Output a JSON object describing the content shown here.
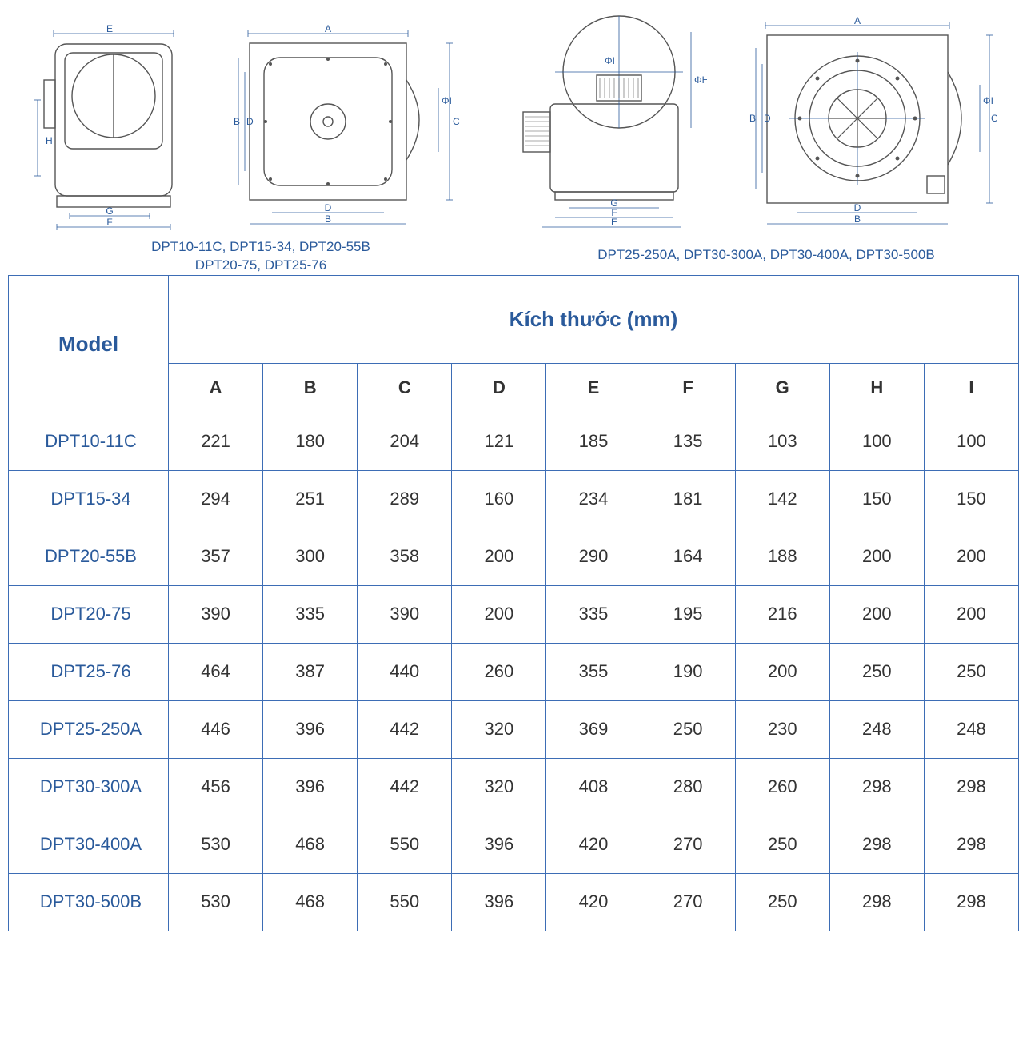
{
  "colors": {
    "line_blue": "#2a5a9b",
    "border_blue": "#3d6db5",
    "gray": "#555555",
    "background": "#ffffff",
    "text": "#333333"
  },
  "typography": {
    "font_family": "Arial",
    "caption_fontsize": 17,
    "header_fontsize": 26,
    "cell_fontsize": 22,
    "dim_label_fontsize": 12
  },
  "diagrams": {
    "left_caption_line1": "DPT10-11C, DPT15-34, DPT20-55B",
    "left_caption_line2": "DPT20-75, DPT25-76",
    "right_caption": "DPT25-250A, DPT30-300A, DPT30-400A, DPT30-500B",
    "dim_labels": [
      "A",
      "B",
      "C",
      "D",
      "E",
      "F",
      "G",
      "H",
      "ΦI",
      "ΦH"
    ]
  },
  "table": {
    "model_header": "Model",
    "dims_header": "Kích thước (mm)",
    "columns": [
      "A",
      "B",
      "C",
      "D",
      "E",
      "F",
      "G",
      "H",
      "I"
    ],
    "rows": [
      {
        "model": "DPT10-11C",
        "v": [
          221,
          180,
          204,
          121,
          185,
          135,
          103,
          100,
          100
        ]
      },
      {
        "model": "DPT15-34",
        "v": [
          294,
          251,
          289,
          160,
          234,
          181,
          142,
          150,
          150
        ]
      },
      {
        "model": "DPT20-55B",
        "v": [
          357,
          300,
          358,
          200,
          290,
          164,
          188,
          200,
          200
        ]
      },
      {
        "model": "DPT20-75",
        "v": [
          390,
          335,
          390,
          200,
          335,
          195,
          216,
          200,
          200
        ]
      },
      {
        "model": "DPT25-76",
        "v": [
          464,
          387,
          440,
          260,
          355,
          190,
          200,
          250,
          250
        ]
      },
      {
        "model": "DPT25-250A",
        "v": [
          446,
          396,
          442,
          320,
          369,
          250,
          230,
          248,
          248
        ]
      },
      {
        "model": "DPT30-300A",
        "v": [
          456,
          396,
          442,
          320,
          408,
          280,
          260,
          298,
          298
        ]
      },
      {
        "model": "DPT30-400A",
        "v": [
          530,
          468,
          550,
          396,
          420,
          270,
          250,
          298,
          298
        ]
      },
      {
        "model": "DPT30-500B",
        "v": [
          530,
          468,
          550,
          396,
          420,
          270,
          250,
          298,
          298
        ]
      }
    ]
  }
}
